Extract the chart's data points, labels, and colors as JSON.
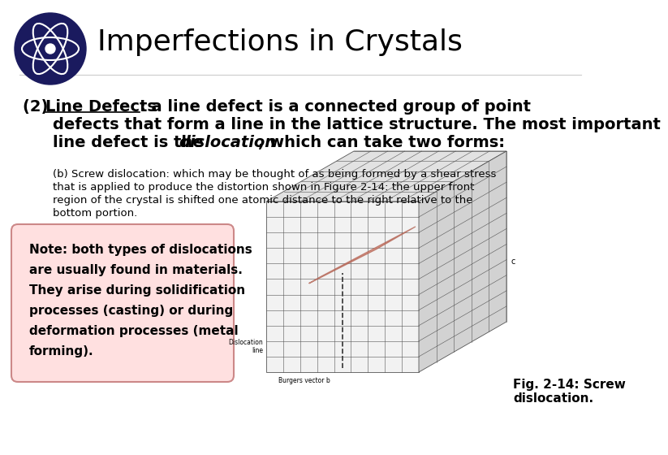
{
  "title": "Imperfections in Crystals",
  "bg_color": "#ffffff",
  "body_text": "(b) Screw dislocation: which may be thought of as being formed by a shear stress\nthat is applied to produce the distortion shown in Figure 2-14: the upper front\nregion of the crystal is shifted one atomic distance to the right relative to the\nbottom portion.",
  "note_text": "Note: both types of dislocations\nare usually found in materials.\nThey arise during solidification\nprocesses (casting) or during\ndeformation processes (metal\nforming).",
  "note_bg": "#ffe0e0",
  "note_border": "#cc8888",
  "fig_caption": "Fig. 2-14: Screw\ndislocation.",
  "atom_icon_color": "#1a1a5e"
}
